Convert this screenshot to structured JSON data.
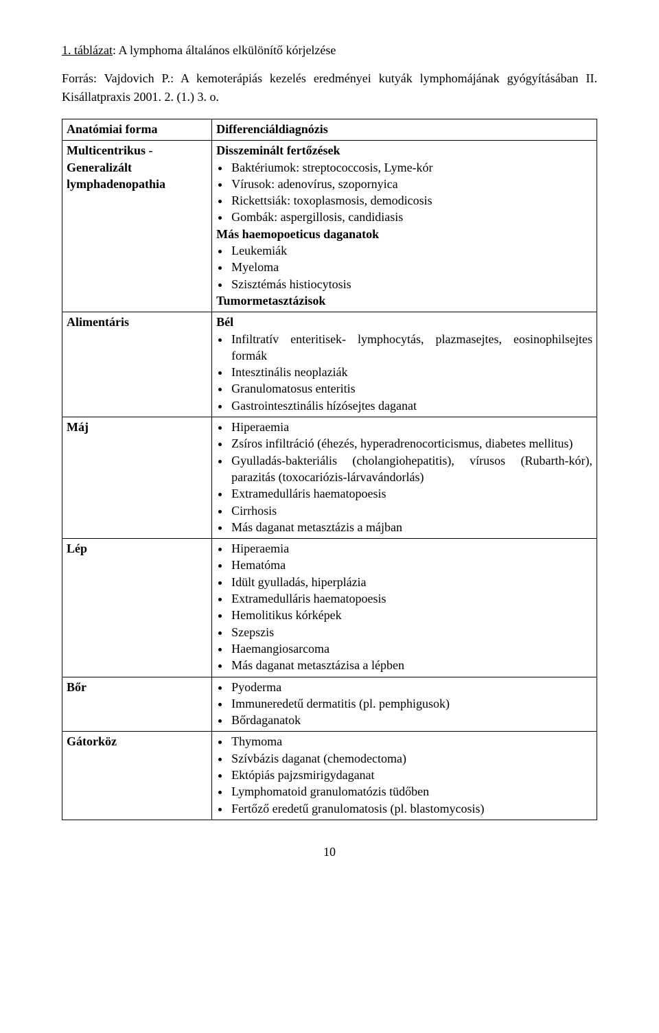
{
  "caption": {
    "label": "1. táblázat",
    "text": ": A lymphoma általános elkülönítő kórjelzése"
  },
  "source": "Forrás: Vajdovich P.: A kemoterápiás kezelés eredményei kutyák lymphomájának gyógyításában II. Kisállatpraxis 2001. 2. (1.) 3. o.",
  "header": {
    "left": "Anatómiai forma",
    "right": "Differenciáldiagnózis"
  },
  "rows": [
    {
      "left_lines": [
        "Multicentrikus -",
        "Generalizált",
        "lymphadenopathia"
      ],
      "right": {
        "groups": [
          {
            "title": "Disszeminált fertőzések",
            "items": [
              "Baktériumok: streptococcosis, Lyme-kór",
              "Vírusok: adenovírus, szopornyica",
              "Rickettsiák: toxoplasmosis, demodicosis",
              "Gombák: aspergillosis, candidiasis"
            ]
          },
          {
            "title": "Más haemopoeticus daganatok",
            "items": [
              "Leukemiák",
              "Myeloma",
              "Szisztémás histiocytosis"
            ]
          },
          {
            "title": "Tumormetasztázisok",
            "items": []
          }
        ]
      }
    },
    {
      "left_lines": [
        "Alimentáris"
      ],
      "right": {
        "groups": [
          {
            "title": "Bél",
            "items": [
              "Infiltratív enteritisek- lymphocytás, plazmasejtes, eosinophilsejtes formák",
              "Intesztinális neoplaziák",
              "Granulomatosus enteritis",
              "Gastrointesztinális hízósejtes daganat"
            ]
          }
        ]
      }
    },
    {
      "left_lines": [
        "Máj"
      ],
      "right": {
        "groups": [
          {
            "title": null,
            "items": [
              "Hiperaemia",
              "Zsíros infiltráció (éhezés, hyperadrenocorticismus, diabetes mellitus)",
              "Gyulladás-bakteriális (cholangiohepatitis), vírusos (Rubarth-kór), parazitás (toxocariózis-lárvavándorlás)",
              "Extramedulláris haematopoesis",
              "Cirrhosis",
              "Más daganat metasztázis a májban"
            ]
          }
        ]
      }
    },
    {
      "left_lines": [
        "Lép"
      ],
      "right": {
        "groups": [
          {
            "title": null,
            "items": [
              "Hiperaemia",
              "Hematóma",
              "Idült gyulladás, hiperplázia",
              "Extramedulláris haematopoesis",
              "Hemolitikus kórképek",
              "Szepszis",
              "Haemangiosarcoma",
              "Más daganat metasztázisa a lépben"
            ]
          }
        ]
      }
    },
    {
      "left_lines": [
        "Bőr"
      ],
      "right": {
        "groups": [
          {
            "title": null,
            "items": [
              "Pyoderma",
              "Immuneredetű dermatitis (pl. pemphigusok)",
              "Bőrdaganatok"
            ]
          }
        ]
      }
    },
    {
      "left_lines": [
        "Gátorköz"
      ],
      "right": {
        "groups": [
          {
            "title": null,
            "items": [
              "Thymoma",
              "Szívbázis daganat (chemodectoma)",
              "Ektópiás pajzsmirigydaganat",
              "Lymphomatoid granulomatózis tüdőben",
              "Fertőző eredetű granulomatosis (pl. blastomycosis)"
            ]
          }
        ]
      }
    }
  ],
  "page_number": "10"
}
